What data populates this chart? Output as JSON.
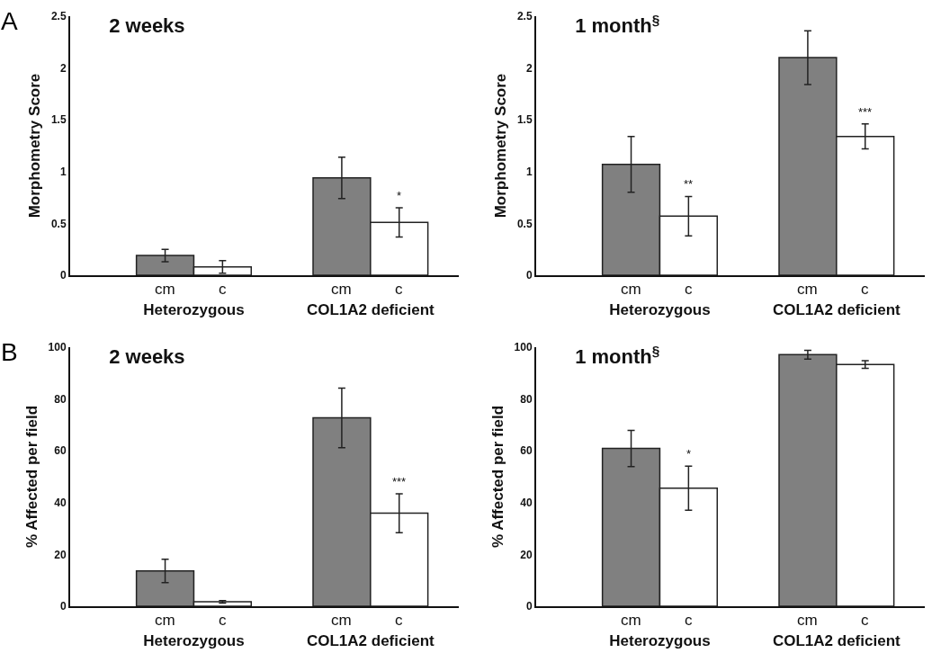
{
  "chart_data": [
    {
      "type": "bar",
      "title": "2 weeks",
      "ylabel": "Morphometry Score",
      "annotations": [
        "A"
      ],
      "categories": [
        "Heterozygous",
        "COL1A2 deficient"
      ],
      "ylim": [
        0,
        2.5
      ],
      "yticks": [
        0,
        0.5,
        1,
        1.5,
        2,
        2.5
      ],
      "grid": false,
      "legend": false,
      "series": [
        {
          "name": "cm",
          "color": "#808080",
          "values": [
            0.19,
            0.94
          ],
          "errors": [
            0.06,
            0.2
          ]
        },
        {
          "name": "c",
          "color": "#ffffff",
          "values": [
            0.08,
            0.51
          ],
          "errors": [
            0.06,
            0.14
          ],
          "value_labels": [
            null,
            "*"
          ]
        }
      ]
    },
    {
      "type": "bar",
      "title": "1 month$^{§}$",
      "ylabel": "Morphometry Score",
      "categories": [
        "Heterozygous",
        "COL1A2 deficient"
      ],
      "ylim": [
        0,
        2.5
      ],
      "yticks": [
        0,
        0.5,
        1,
        1.5,
        2,
        2.5
      ],
      "grid": false,
      "legend": false,
      "series": [
        {
          "name": "cm",
          "color": "#808080",
          "values": [
            1.07,
            2.1
          ],
          "errors": [
            0.27,
            0.26
          ]
        },
        {
          "name": "c",
          "color": "#ffffff",
          "values": [
            0.57,
            1.34
          ],
          "errors": [
            0.19,
            0.12
          ],
          "value_labels": [
            "**",
            "***"
          ]
        }
      ]
    },
    {
      "type": "bar",
      "title": "2 weeks",
      "ylabel": "% Affected per field",
      "annotations": [
        "B"
      ],
      "categories": [
        "Heterozygous",
        "COL1A2 deficient"
      ],
      "ylim": [
        0,
        100
      ],
      "yticks": [
        0,
        20,
        40,
        60,
        80,
        100
      ],
      "grid": false,
      "legend": false,
      "series": [
        {
          "name": "cm",
          "color": "#808080",
          "values": [
            13.6,
            72.7
          ],
          "errors": [
            4.5,
            11.5
          ]
        },
        {
          "name": "c",
          "color": "#ffffff",
          "values": [
            1.7,
            35.9
          ],
          "errors": [
            0.5,
            7.5
          ],
          "value_labels": [
            null,
            "***"
          ]
        }
      ]
    },
    {
      "type": "bar",
      "title": "1 month$^{§}$",
      "ylabel": "% Affected per field",
      "categories": [
        "Heterozygous",
        "COL1A2 deficient"
      ],
      "ylim": [
        0,
        100
      ],
      "yticks": [
        0,
        20,
        40,
        60,
        80,
        100
      ],
      "grid": false,
      "legend": false,
      "series": [
        {
          "name": "cm",
          "color": "#808080",
          "values": [
            60.9,
            97.1
          ],
          "errors": [
            7,
            1.7
          ]
        },
        {
          "name": "c",
          "color": "#ffffff",
          "values": [
            45.6,
            93.3
          ],
          "errors": [
            8.5,
            1.5
          ],
          "value_labels": [
            "*",
            null
          ]
        }
      ]
    }
  ]
}
